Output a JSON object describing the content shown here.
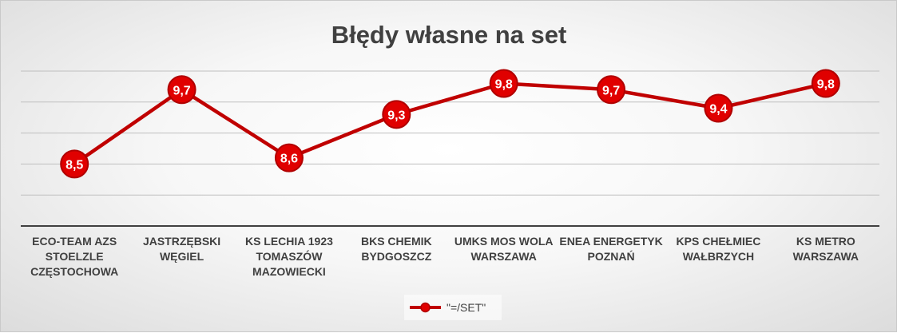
{
  "chart_data": {
    "type": "line",
    "title": "Błędy własne na set",
    "categories": [
      [
        "ECO-TEAM AZS",
        "STOELZLE",
        "CZĘSTOCHOWA"
      ],
      [
        "JASTRZĘBSKI",
        "WĘGIEL"
      ],
      [
        "KS LECHIA 1923",
        "TOMASZÓW",
        "MAZOWIECKI"
      ],
      [
        "BKS CHEMIK",
        "BYDGOSZCZ"
      ],
      [
        "UMKS MOS WOLA",
        "WARSZAWA"
      ],
      [
        "ENEA ENERGETYK",
        "POZNAŃ"
      ],
      [
        "KPS CHEŁMIEC",
        "WAŁBRZYCH"
      ],
      [
        "KS METRO",
        "WARSZAWA"
      ]
    ],
    "series": [
      {
        "name": "\"=/SET\"",
        "values": [
          8.5,
          9.7,
          8.6,
          9.3,
          9.8,
          9.7,
          9.4,
          9.8
        ],
        "labels": [
          "8,5",
          "9,7",
          "8,6",
          "9,3",
          "9,8",
          "9,7",
          "9,4",
          "9,8"
        ]
      }
    ],
    "ylim": [
      7.5,
      10.0
    ],
    "grid": true,
    "legend_position": "bottom",
    "colors": {
      "line": "#c00000",
      "marker": "#e00000",
      "marker_edge": "#b00000",
      "grid": "#bfbfbf",
      "axis": "#404040"
    }
  }
}
